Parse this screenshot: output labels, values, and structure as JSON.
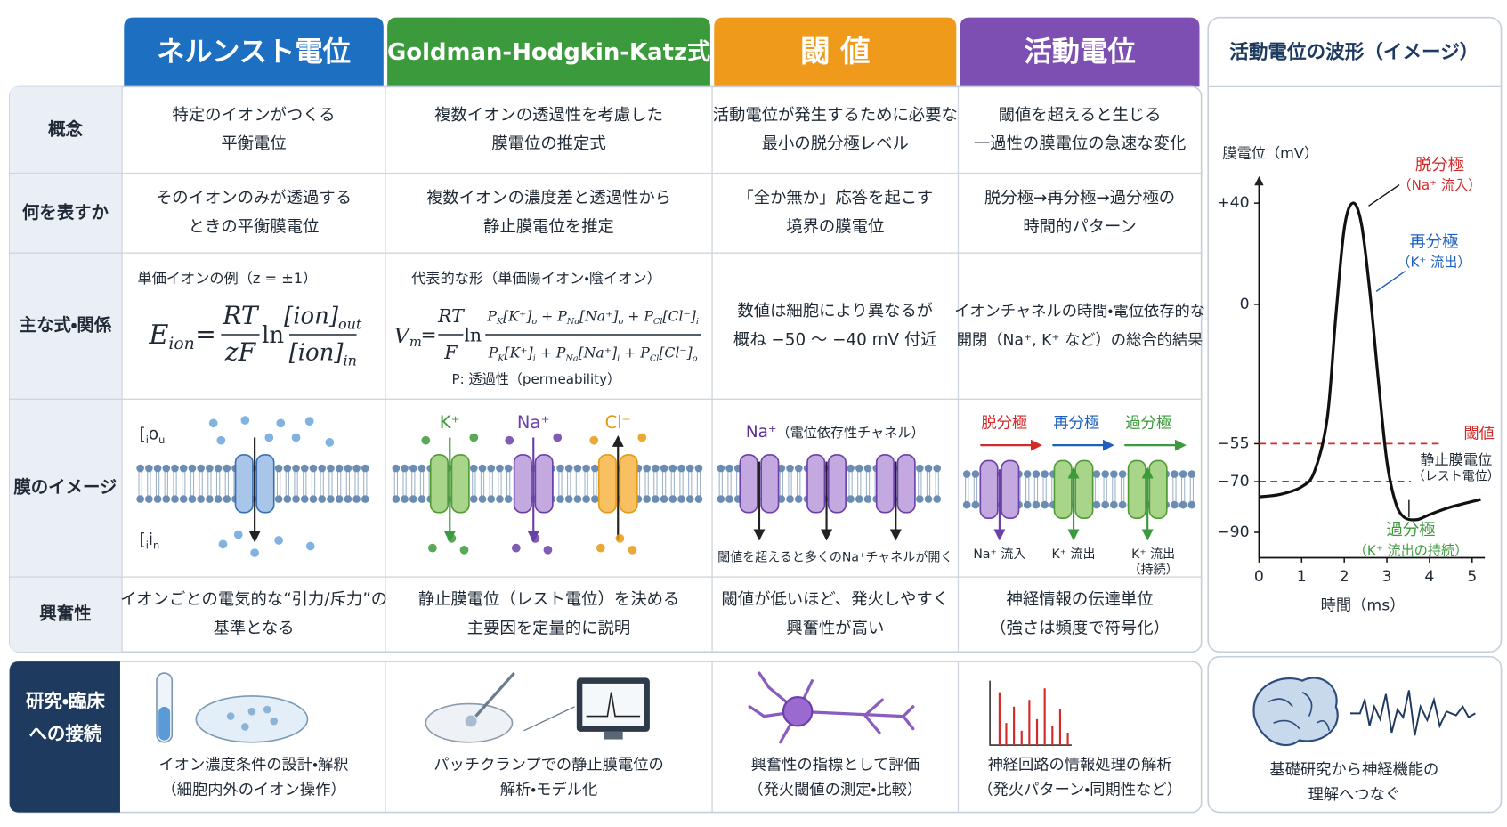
{
  "headers": [
    "ネルンスト電位",
    "Goldman-Hodgkin-Katz式",
    "閾 値",
    "活動電位"
  ],
  "rows": [
    {
      "label": "概念",
      "cells": [
        [
          "特定のイオンがつくる",
          "平衡電位"
        ],
        [
          "複数イオンの透過性を考慮した",
          "膜電位の推定式"
        ],
        [
          "活動電位が発生するために必要な",
          "最小の脱分極レベル"
        ],
        [
          "閾値を超えると生じる",
          "一過性の膜電位の急速な変化"
        ]
      ]
    },
    {
      "label": "何を表すか",
      "cells": [
        [
          "そのイオンのみが透過する",
          "ときの平衡膜電位"
        ],
        [
          "複数イオンの濃度差と透過性から",
          "静止膜電位を推定"
        ],
        [
          "「全か無か」応答を起こす",
          "境界の膜電位"
        ],
        [
          "脱分極→再分極→過分極の",
          "時間的パターン"
        ]
      ]
    },
    {
      "label": "主な式・関係",
      "nernst": {
        "note": "単価イオンの例（z = ±1）",
        "lhs": [
          [
            "E",
            "ion"
          ]
        ],
        "eq": "=",
        "num": "RT",
        "den": "zF",
        "ln": "ln",
        "frac_num": [
          [
            "[ion]",
            "out"
          ]
        ],
        "frac_den": [
          [
            "[ion]",
            "in"
          ]
        ]
      },
      "ghk": {
        "note": "代表的な形（単価陽イオン・陰イオン）",
        "lhs": [
          [
            "V",
            "m"
          ]
        ],
        "eq": "=",
        "num": "RT",
        "den": "F",
        "ln": "ln",
        "frac_num": [
          [
            "P",
            "K"
          ],
          [
            "[K⁺]",
            "o"
          ],
          [
            " + P",
            "Na"
          ],
          [
            "[Na⁺]",
            "o"
          ],
          [
            " + P",
            "Cl"
          ],
          [
            "[Cl⁻]",
            "i"
          ]
        ],
        "frac_den": [
          [
            "P",
            "K"
          ],
          [
            "[K⁺]",
            "i"
          ],
          [
            " + P",
            "Na"
          ],
          [
            "[Na⁺]",
            "i"
          ],
          [
            " + P",
            "Cl"
          ],
          [
            "[Cl⁻]",
            "o"
          ]
        ],
        "legend": "P: 透過性（permeability）"
      },
      "threshold": [
        "数値は細胞により異なるが",
        "概ね −50 〜 −40 mV 付近"
      ],
      "ap": [
        "イオンチャネルの時間・電位依存的な",
        "開閉（Na⁺, K⁺ など）の総合的結果"
      ]
    },
    {
      "label": "膜のイメージ",
      "nernst": {
        "out": [
          "[ion]",
          "out"
        ],
        "in": [
          "[ion]",
          "in"
        ]
      },
      "ghk": [
        "K⁺",
        "Na⁺",
        "Cl⁻"
      ],
      "threshold": {
        "title": "Na⁺",
        "title_note": "（電位依存性チャネル）",
        "caption": "閾値を超えると多くのNa⁺チャネルが開く"
      },
      "ap": {
        "phases": [
          "脱分極",
          "再分極",
          "過分極"
        ],
        "captions": [
          [
            "Na⁺ 流入"
          ],
          [
            "K⁺ 流出"
          ],
          [
            "K⁺ 流出",
            "（持続）"
          ]
        ]
      }
    },
    {
      "label": "興奮性",
      "cells": [
        [
          "イオンごとの電気的な“引力/斥力”の",
          "基準となる"
        ],
        [
          "静止膜電位（レスト電位）を決める",
          "主要因を定量的に説明"
        ],
        [
          "閾値が低いほど、発火しやすく",
          "興奮性が高い"
        ],
        [
          "神経情報の伝達単位",
          "（強さは頻度で符号化）"
        ]
      ]
    }
  ],
  "waveform": {
    "title": "活動電位の波形（イメージ）",
    "ylabel": "膜電位（mV）",
    "xlabel": "時間（ms）",
    "xlim": [
      0,
      5.3
    ],
    "ylim": [
      -100,
      48
    ],
    "xticks": [
      0,
      1,
      2,
      3,
      4,
      5
    ],
    "yticks": [
      {
        "value": 40,
        "label": "+40"
      },
      0,
      {
        "value": -55,
        "label": "−55"
      },
      {
        "value": -70,
        "label": "−70"
      },
      {
        "value": -90,
        "label": "−90"
      }
    ],
    "x": [
      0,
      0.5,
      1,
      1.3,
      1.6,
      1.8,
      2,
      2.2,
      2.4,
      2.6,
      2.8,
      3,
      3.2,
      3.4,
      3.7,
      4,
      4.5,
      5.2
    ],
    "values": [
      -76,
      -75,
      -72,
      -66,
      -45,
      -5,
      30,
      40,
      32,
      5,
      -30,
      -62,
      -78,
      -84,
      -85,
      -83,
      -80,
      -77
    ],
    "threshold": {
      "value": -55,
      "label": "閾値"
    },
    "rest": {
      "value": -70,
      "label": "静止膜電位",
      "note": "（レスト電位）"
    },
    "annotations": [
      {
        "label": "脱分極",
        "note": "（Na⁺ 流入）"
      },
      {
        "label": "再分極",
        "note": "（K⁺ 流出）"
      },
      {
        "label": "過分極",
        "note": "（K⁺ 流出の持続）"
      }
    ]
  },
  "bottom": {
    "label": [
      "研究・臨床",
      "への接続"
    ],
    "cells": [
      [
        "イオン濃度条件の設計・解釈",
        "（細胞内外のイオン操作）"
      ],
      [
        "パッチクランプでの静止膜電位の",
        "解析・モデル化"
      ],
      [
        "興奮性の指標として評価",
        "（発火閾値の測定・比較）"
      ],
      [
        "神経回路の情報処理の解析",
        "（発火パターン・同期性など）"
      ]
    ],
    "panel": [
      "基礎研究から神経機能の",
      "理解へつなぐ"
    ]
  }
}
